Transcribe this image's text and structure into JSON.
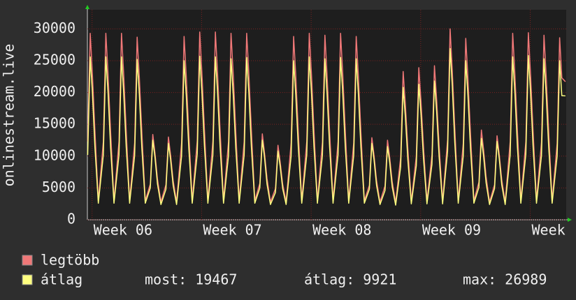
{
  "chart_data": {
    "type": "line",
    "y_label": "onlinestream.live",
    "x": [
      0.02,
      0.18,
      0.32,
      0.48,
      0.7,
      1.02,
      1.18,
      1.32,
      1.48,
      1.7,
      2.02,
      2.18,
      2.32,
      2.48,
      2.7,
      3.02,
      3.18,
      3.32,
      3.48,
      3.7,
      4.02,
      4.18,
      4.32,
      4.48,
      4.7,
      5.02,
      5.18,
      5.32,
      5.48,
      5.7,
      6.02,
      6.18,
      6.32,
      6.48,
      6.7,
      7.02,
      7.18,
      7.32,
      7.48,
      7.7,
      8.02,
      8.18,
      8.32,
      8.48,
      8.7,
      9.02,
      9.18,
      9.32,
      9.48,
      9.7,
      10.02,
      10.18,
      10.32,
      10.48,
      10.7,
      11.02,
      11.18,
      11.32,
      11.48,
      11.7,
      12.02,
      12.18,
      12.32,
      12.48,
      12.7,
      13.02,
      13.18,
      13.32,
      13.48,
      13.7,
      14.02,
      14.18,
      14.32,
      14.48,
      14.7,
      15.02,
      15.18,
      15.32,
      15.48,
      15.7,
      16.02,
      16.18,
      16.32,
      16.48,
      16.7,
      17.02,
      17.18,
      17.32,
      17.48,
      17.7,
      18.02,
      18.18,
      18.32,
      18.48,
      18.7,
      19.02,
      19.18,
      19.32,
      19.48,
      19.7,
      20.02,
      20.18,
      20.32,
      20.48,
      20.7,
      21.02,
      21.18,
      21.32,
      21.48,
      21.7,
      22.02,
      22.18,
      22.32,
      22.48,
      22.7,
      23.02,
      23.18,
      23.32,
      23.48,
      23.7,
      24.02,
      24.18,
      24.32,
      24.48,
      24.7,
      25.02,
      25.18,
      25.32,
      25.48,
      25.7,
      26.02,
      26.18,
      26.32,
      26.48,
      26.7,
      27.02,
      27.18,
      27.32,
      27.48,
      27.7,
      28.02,
      28.18,
      28.32,
      28.48,
      28.7,
      29.02,
      29.18,
      29.32,
      29.48,
      29.7,
      30.02,
      30.18,
      30.32,
      30.55
    ],
    "series": [
      {
        "name": "legtöbb",
        "color": "#f07878",
        "values": [
          12300,
          29300,
          22900,
          14100,
          3000,
          12300,
          29300,
          22900,
          14100,
          3000,
          12300,
          29300,
          22900,
          14100,
          3000,
          12100,
          28700,
          22400,
          13800,
          3000,
          5600,
          13400,
          10500,
          6400,
          2800,
          5500,
          13000,
          10100,
          6200,
          2800,
          12100,
          28800,
          22500,
          13800,
          3000,
          12400,
          29500,
          23000,
          14200,
          3000,
          12400,
          29500,
          23000,
          14200,
          3000,
          12300,
          29300,
          22900,
          14100,
          3000,
          12300,
          29300,
          22900,
          14100,
          3000,
          5700,
          13500,
          10500,
          6500,
          2800,
          4900,
          11700,
          9100,
          5600,
          2800,
          12100,
          28800,
          22500,
          13800,
          3000,
          12300,
          29300,
          22900,
          14100,
          3000,
          12200,
          29000,
          22600,
          13900,
          3000,
          12300,
          29300,
          22900,
          14100,
          3000,
          12100,
          28800,
          22500,
          13800,
          3000,
          5400,
          12900,
          10100,
          6200,
          2800,
          5300,
          12500,
          9800,
          6000,
          2700,
          9800,
          23300,
          18200,
          11200,
          2900,
          10000,
          23900,
          18600,
          11500,
          2900,
          10200,
          24200,
          18900,
          11600,
          2900,
          12600,
          30000,
          23400,
          14400,
          3000,
          12000,
          28500,
          22200,
          13700,
          3000,
          5900,
          14100,
          11000,
          6800,
          2800,
          5500,
          13200,
          10300,
          6300,
          2800,
          12300,
          29300,
          22900,
          14100,
          3000,
          12300,
          29400,
          22900,
          14100,
          3000,
          12200,
          29000,
          22600,
          13900,
          3000,
          12000,
          28600,
          22300,
          21700
        ]
      },
      {
        "name": "átlag",
        "color": "#ffff80",
        "values": [
          10200,
          25600,
          20000,
          11500,
          2600,
          10200,
          25600,
          20000,
          11500,
          2600,
          10200,
          25600,
          20000,
          11500,
          2600,
          10100,
          25200,
          19700,
          11300,
          2600,
          5000,
          12500,
          9800,
          5600,
          2400,
          4800,
          12000,
          9400,
          5400,
          2400,
          10000,
          25000,
          19500,
          11300,
          2600,
          10300,
          25700,
          20000,
          11600,
          2600,
          10200,
          25600,
          20000,
          11500,
          2600,
          10100,
          25300,
          19700,
          11400,
          2600,
          10200,
          25500,
          19900,
          11500,
          2600,
          5000,
          12500,
          9800,
          5600,
          2400,
          4300,
          10800,
          8400,
          4900,
          2400,
          10000,
          25000,
          19500,
          11300,
          2600,
          10200,
          25600,
          20000,
          11500,
          2600,
          10100,
          25300,
          19700,
          11400,
          2600,
          10200,
          25500,
          19900,
          11500,
          2600,
          10100,
          25300,
          19700,
          11400,
          2600,
          4800,
          12000,
          9400,
          5400,
          2400,
          4600,
          11500,
          9000,
          5200,
          2300,
          8300,
          20800,
          16200,
          9400,
          2500,
          8500,
          21300,
          16600,
          9600,
          2500,
          8700,
          21800,
          17000,
          9800,
          2500,
          10800,
          26900,
          21000,
          12100,
          2600,
          10000,
          25000,
          19500,
          11300,
          2600,
          5100,
          12800,
          10000,
          5800,
          2400,
          4900,
          12300,
          9600,
          5500,
          2400,
          10200,
          25600,
          20000,
          11500,
          2600,
          10300,
          25800,
          20100,
          11600,
          2600,
          10100,
          25300,
          19700,
          11400,
          2600,
          10000,
          25000,
          19500,
          19467
        ]
      }
    ],
    "xlim": [
      0,
      30.6
    ],
    "xticks": [
      {
        "value": 0.3,
        "label": "Week 06"
      },
      {
        "value": 7.3,
        "label": "Week 07"
      },
      {
        "value": 14.3,
        "label": "Week 08"
      },
      {
        "value": 21.3,
        "label": "Week 09"
      },
      {
        "value": 28.3,
        "label": "Week"
      }
    ],
    "ylim": [
      0,
      33000
    ],
    "yticks": [
      0,
      5000,
      10000,
      15000,
      20000,
      25000,
      30000
    ],
    "grid": true,
    "stats": [
      {
        "label": "most:",
        "value": 19467
      },
      {
        "label": "átlag:",
        "value": 9921
      },
      {
        "label": "max:",
        "value": 26989
      }
    ]
  }
}
